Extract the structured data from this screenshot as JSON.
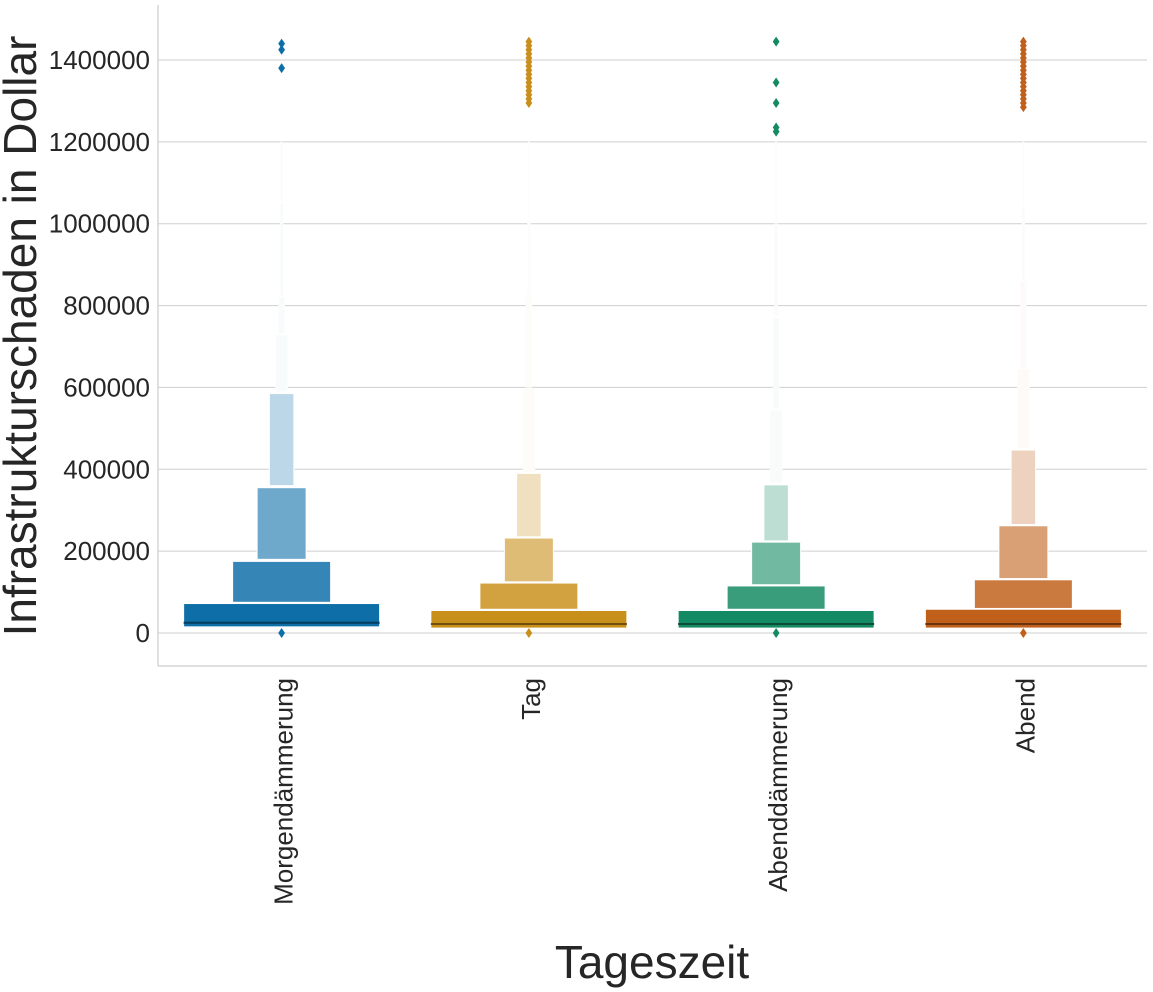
{
  "chart_data": {
    "type": "boxen",
    "title": "",
    "xlabel": "Tageszeit",
    "ylabel": "Infrastrukturschaden in Dollar",
    "ylim": [
      -80000,
      1530000
    ],
    "yticks": [
      0,
      200000,
      400000,
      600000,
      800000,
      1000000,
      1200000,
      1400000
    ],
    "ytick_labels": [
      "0",
      "200000",
      "400000",
      "600000",
      "800000",
      "1000000",
      "1200000",
      "1400000"
    ],
    "grid": "horizontal",
    "categories": [
      "Morgendämmerung",
      "Tag",
      "Abenddämmerung",
      "Abend"
    ],
    "colors": [
      "#0e6fa8",
      "#c8901a",
      "#138a63",
      "#c0601a"
    ],
    "series": [
      {
        "category": "Morgendämmerung",
        "median": 25000,
        "boxes": [
          [
            15000,
            72000
          ],
          [
            75000,
            175000
          ],
          [
            180000,
            355000
          ],
          [
            360000,
            585000
          ],
          [
            590000,
            728000
          ],
          [
            732000,
            820000
          ],
          [
            825000,
            1050000
          ],
          [
            1055000,
            1200000
          ]
        ],
        "outliers": [
          1440000,
          1425000,
          1380000,
          0
        ]
      },
      {
        "category": "Tag",
        "median": 22000,
        "boxes": [
          [
            12000,
            55000
          ],
          [
            58000,
            122000
          ],
          [
            125000,
            232000
          ],
          [
            235000,
            390000
          ],
          [
            393000,
            597000
          ],
          [
            600000,
            830000
          ],
          [
            833000,
            1010000
          ],
          [
            1013000,
            1200000
          ]
        ],
        "outliers": [
          1445000,
          1435000,
          1425000,
          1415000,
          1405000,
          1395000,
          1385000,
          1375000,
          1365000,
          1355000,
          1345000,
          1335000,
          1325000,
          1315000,
          1305000,
          1295000,
          0
        ]
      },
      {
        "category": "Abenddämmerung",
        "median": 22000,
        "boxes": [
          [
            12000,
            55000
          ],
          [
            58000,
            115000
          ],
          [
            118000,
            222000
          ],
          [
            225000,
            362000
          ],
          [
            365000,
            545000
          ],
          [
            548000,
            770000
          ],
          [
            773000,
            1000000
          ],
          [
            1003000,
            1200000
          ]
        ],
        "outliers": [
          1445000,
          1345000,
          1295000,
          1235000,
          1225000,
          0
        ]
      },
      {
        "category": "Abend",
        "median": 22000,
        "boxes": [
          [
            12000,
            58000
          ],
          [
            60000,
            130000
          ],
          [
            133000,
            262000
          ],
          [
            265000,
            447000
          ],
          [
            450000,
            645000
          ],
          [
            648000,
            860000
          ],
          [
            863000,
            1040000
          ],
          [
            1043000,
            1200000
          ]
        ],
        "outliers": [
          1445000,
          1435000,
          1425000,
          1415000,
          1405000,
          1395000,
          1385000,
          1375000,
          1365000,
          1355000,
          1345000,
          1335000,
          1325000,
          1315000,
          1305000,
          1295000,
          1285000,
          0
        ]
      }
    ]
  }
}
